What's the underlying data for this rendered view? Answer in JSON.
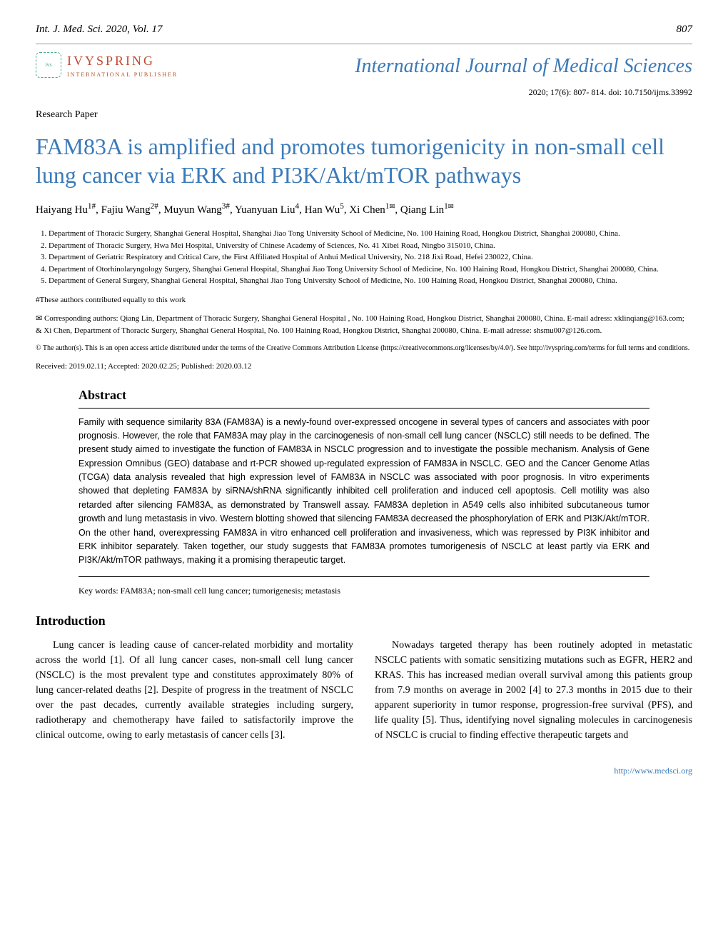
{
  "header": {
    "journal_ref": "Int. J. Med. Sci. 2020, Vol. 17",
    "page_number": "807"
  },
  "branding": {
    "publisher_name": "IVYSPRING",
    "publisher_sub": "INTERNATIONAL PUBLISHER",
    "journal_name": "International Journal of Medical Sciences",
    "issue_info": "2020; 17(6): 807- 814. doi: 10.7150/ijms.33992"
  },
  "paper_type": "Research Paper",
  "title": "FAM83A is amplified and promotes tumorigenicity in non-small cell lung cancer via ERK and PI3K/Akt/mTOR pathways",
  "authors_line": "Haiyang Hu1#, Fajiu Wang2#, Muyun Wang3#, Yuanyuan Liu4, Han Wu5, Xi Chen1✉, Qiang Lin1✉",
  "affiliations": [
    "Department of Thoracic Surgery, Shanghai General Hospital, Shanghai Jiao Tong University School of Medicine, No. 100 Haining Road, Hongkou District, Shanghai 200080, China.",
    "Department of Thoracic Surgery, Hwa Mei Hospital, University of Chinese Academy of Sciences, No. 41 Xibei Road, Ningbo 315010, China.",
    "Department of Geriatric Respiratory and Critical Care, the First Affiliated Hospital of Anhui Medical University, No. 218 Jixi Road, Hefei 230022, China.",
    "Department of Otorhinolaryngology Surgery, Shanghai General Hospital, Shanghai Jiao Tong University School of Medicine, No. 100 Haining Road, Hongkou District, Shanghai 200080, China.",
    "Department of General Surgery, Shanghai General Hospital, Shanghai Jiao Tong University School of Medicine, No. 100 Haining Road, Hongkou District, Shanghai 200080, China."
  ],
  "contrib_note": "#These authors contributed equally to this work",
  "corresponding": "✉ Corresponding authors: Qiang Lin, Department of Thoracic Surgery, Shanghai General Hospital , No. 100 Haining Road, Hongkou District, Shanghai 200080, China. E-mail adress: xklinqiang@163.com; & Xi Chen, Department of Thoracic Surgery, Shanghai General Hospital, No. 100 Haining Road, Hongkou District, Shanghai 200080, China. E-mail adresse: shsmu007@126.com.",
  "license": "© The author(s). This is an open access article distributed under the terms of the Creative Commons Attribution License (https://creativecommons.org/licenses/by/4.0/). See http://ivyspring.com/terms for full terms and conditions.",
  "dates": "Received: 2019.02.11; Accepted: 2020.02.25; Published: 2020.03.12",
  "abstract": {
    "heading": "Abstract",
    "text": "Family with sequence similarity 83A (FAM83A) is a newly-found over-expressed oncogene in several types of cancers and associates with poor prognosis. However, the role that FAM83A may play in the carcinogenesis of non-small cell lung cancer (NSCLC) still needs to be defined. The present study aimed to investigate the function of FAM83A in NSCLC progression and to investigate the possible mechanism. Analysis of Gene Expression Omnibus (GEO) database and rt-PCR showed up-regulated expression of FAM83A in NSCLC. GEO and the Cancer Genome Atlas (TCGA) data analysis revealed that high expression level of FAM83A in NSCLC was associated with poor prognosis. In vitro experiments showed that depleting FAM83A by siRNA/shRNA significantly inhibited cell proliferation and induced cell apoptosis. Cell motility was also retarded after silencing FAM83A, as demonstrated by Transwell assay. FAM83A depletion in A549 cells also inhibited subcutaneous tumor growth and lung metastasis in vivo. Western blotting showed that silencing FAM83A decreased the phosphorylation of ERK and PI3K/Akt/mTOR. On the other hand, overexpressing FAM83A in vitro enhanced cell proliferation and invasiveness, which was repressed by PI3K inhibitor and ERK inhibitor separately. Taken together, our study suggests that FAM83A promotes tumorigenesis of NSCLC at least partly via ERK and PI3K/Akt/mTOR pathways, making it a promising therapeutic target.",
    "keywords": "Key words: FAM83A; non-small cell lung cancer; tumorigenesis; metastasis"
  },
  "introduction": {
    "heading": "Introduction",
    "col1": "Lung cancer is leading cause of cancer-related morbidity and mortality across the world [1]. Of all lung cancer cases, non-small cell lung cancer (NSCLC) is the most prevalent type and constitutes approximately 80% of lung cancer-related deaths [2]. Despite of progress in the treatment of NSCLC over the past decades, currently available strategies including surgery, radiotherapy and chemotherapy have failed to satisfactorily improve the clinical outcome, owing to early metastasis of cancer cells [3].",
    "col2": "Nowadays targeted therapy has been routinely adopted in metastatic NSCLC patients with somatic sensitizing mutations such as EGFR, HER2 and KRAS. This has increased median overall survival among this patients group from 7.9 months on average in 2002 [4] to 27.3 months in 2015 due to their apparent superiority in tumor response, progression-free survival (PFS), and life quality [5]. Thus, identifying novel signaling molecules in carcinogenesis of NSCLC is crucial to finding effective therapeutic targets and"
  },
  "footer_link": "http://www.medsci.org",
  "colors": {
    "heading_blue": "#3b7ab8",
    "publisher_red": "#c04830",
    "background": "#ffffff",
    "text": "#000000"
  },
  "typography": {
    "title_fontsize_pt": 24,
    "body_fontsize_pt": 10.5,
    "abstract_fontsize_pt": 9.5,
    "affil_fontsize_pt": 8
  }
}
